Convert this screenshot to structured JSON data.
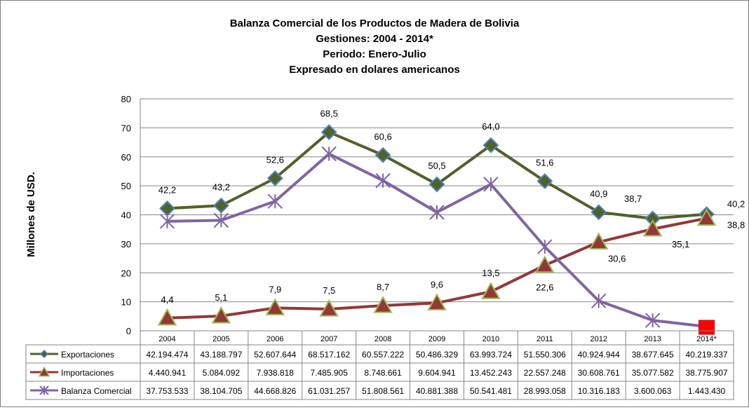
{
  "chart_data": {
    "type": "line",
    "title": [
      "Balanza Comercial de los Productos de Madera de Bolivia",
      "Gestiones: 2004 - 2014*",
      "Periodo: Enero-Julio",
      "Expresado en dolares americanos"
    ],
    "ylabel": "Millones de USD.",
    "ylim": [
      0,
      80
    ],
    "yticks": [
      "0",
      "10",
      "20",
      "30",
      "40",
      "50",
      "60",
      "70",
      "80"
    ],
    "grid": true,
    "categories": [
      "2004",
      "2005",
      "2006",
      "2007",
      "2008",
      "2009",
      "2010",
      "2011",
      "2012",
      "2013",
      "2014*"
    ],
    "series": [
      {
        "name": "Exportaciones",
        "color": "#4f6228",
        "marker": "diamond",
        "values": [
          42.2,
          43.2,
          52.6,
          68.5,
          60.6,
          50.5,
          64.0,
          51.6,
          40.9,
          38.7,
          40.2
        ],
        "labels": [
          "42,2",
          "43,2",
          "52,6",
          "68,5",
          "60,6",
          "50,5",
          "64,0",
          "51,6",
          "40,9",
          "38,7",
          "40,2"
        ],
        "table": [
          "42.194.474",
          "43.188.797",
          "52.607.644",
          "68.517.162",
          "60.557.222",
          "50.486.329",
          "63.993.724",
          "51.550.306",
          "40.924.944",
          "38.677.645",
          "40.219.337"
        ]
      },
      {
        "name": "Importaciones",
        "color": "#953735",
        "marker": "triangle",
        "values": [
          4.4,
          5.1,
          7.9,
          7.5,
          8.7,
          9.6,
          13.5,
          22.6,
          30.6,
          35.1,
          38.8
        ],
        "labels": [
          "4,4",
          "5,1",
          "7,9",
          "7,5",
          "8,7",
          "9,6",
          "13,5",
          "22,6",
          "30,6",
          "35,1",
          "38,8"
        ],
        "table": [
          "4.440.941",
          "5.084.092",
          "7.938.818",
          "7.485.905",
          "8.748.661",
          "9.604.941",
          "13.452.243",
          "22.557.248",
          "30.608.761",
          "35.077.582",
          "38.775.907"
        ]
      },
      {
        "name": "Balanza Comercial",
        "color": "#8064a2",
        "marker": "star",
        "values": [
          37.75,
          38.1,
          44.67,
          61.03,
          51.81,
          40.88,
          50.54,
          28.99,
          10.32,
          3.6,
          1.44
        ],
        "table": [
          "37.753.533",
          "38.104.705",
          "44.668.826",
          "61.031.257",
          "51.808.561",
          "40.881.388",
          "50.541.481",
          "28.993.058",
          "10.316.183",
          "3.600.063",
          "1.443.430"
        ]
      }
    ],
    "highlight_last_point_color": "#ff0000"
  }
}
